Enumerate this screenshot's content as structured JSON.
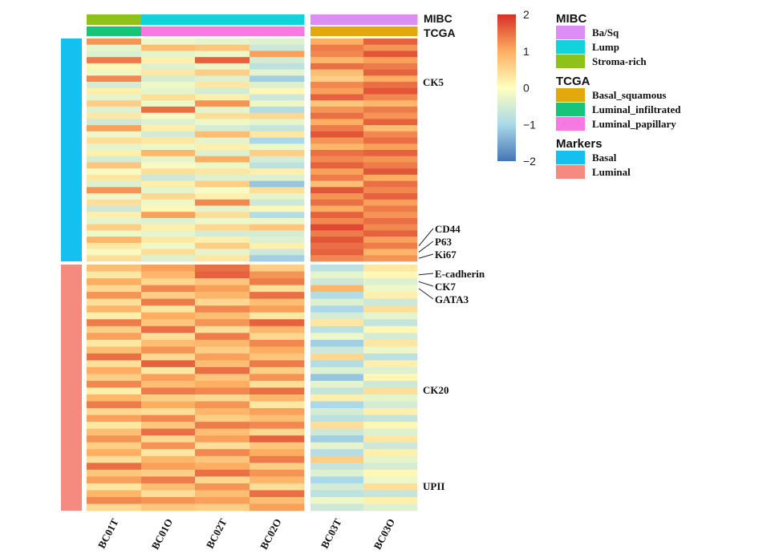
{
  "chart_data": {
    "type": "heatmap",
    "columns": [
      "BC01T",
      "BC01O",
      "BC02T",
      "BC02O",
      "BC03T",
      "BC03O"
    ],
    "column_groups": [
      [
        0,
        1,
        2,
        3
      ],
      [
        4,
        5
      ]
    ],
    "annotations": {
      "MIBC": [
        "Stroma-rich",
        "Lump",
        "Lump",
        "Lump",
        "Ba/Sq",
        "Ba/Sq"
      ],
      "TCGA": [
        "Luminal_infiltrated",
        "Luminal_papillary",
        "Luminal_papillary",
        "Luminal_papillary",
        "Basal_squamous",
        "Basal_squamous"
      ]
    },
    "annotation_titles": [
      "MIBC",
      "TCGA"
    ],
    "row_groups": [
      {
        "name": "Basal",
        "color": "#13c0ef"
      },
      {
        "name": "Luminal",
        "color": "#f58a80"
      }
    ],
    "row_labels": [
      {
        "text": "CK5",
        "group": "Basal",
        "row": 8
      },
      {
        "text": "CD44",
        "group": "Basal",
        "row": 33
      },
      {
        "text": "P63",
        "group": "Basal",
        "row": 34
      },
      {
        "text": "Ki67",
        "group": "Basal",
        "row": 35
      },
      {
        "text": "E-cadherin",
        "group": "Luminal",
        "row": 1
      },
      {
        "text": "CK7",
        "group": "Luminal",
        "row": 2
      },
      {
        "text": "GATA3",
        "group": "Luminal",
        "row": 3
      },
      {
        "text": "CK20",
        "group": "Luminal",
        "row": 18
      },
      {
        "text": "UPII",
        "group": "Luminal",
        "row": 32
      }
    ],
    "basal_values": [
      [
        1.2,
        -0.2,
        -0.3,
        -0.4,
        1.0,
        1.6
      ],
      [
        -0.3,
        0.8,
        0.7,
        -0.6,
        1.4,
        1.2
      ],
      [
        -0.4,
        -0.3,
        -0.2,
        1.1,
        1.3,
        1.7
      ],
      [
        1.4,
        0.2,
        1.6,
        -0.5,
        0.9,
        1.1
      ],
      [
        0.1,
        -0.4,
        -0.2,
        -0.8,
        1.5,
        1.4
      ],
      [
        -0.2,
        0.3,
        0.6,
        -0.3,
        0.8,
        1.6
      ],
      [
        1.3,
        -0.5,
        -0.4,
        -1.1,
        0.6,
        1.0
      ],
      [
        -0.5,
        -0.2,
        0.3,
        -0.4,
        1.3,
        1.5
      ],
      [
        0.2,
        -0.3,
        -0.5,
        0.1,
        1.1,
        1.7
      ],
      [
        -0.3,
        0.4,
        0.2,
        -0.6,
        1.6,
        1.3
      ],
      [
        0.6,
        -0.2,
        1.2,
        -0.2,
        0.7,
        0.9
      ],
      [
        -0.4,
        1.5,
        -0.3,
        -0.9,
        1.2,
        1.4
      ],
      [
        0.3,
        -0.1,
        0.4,
        0.5,
        1.5,
        1.2
      ],
      [
        -0.6,
        -0.4,
        -0.2,
        -0.3,
        1.0,
        1.6
      ],
      [
        1.1,
        0.2,
        -0.5,
        -0.7,
        1.4,
        0.8
      ],
      [
        -0.2,
        -0.5,
        0.8,
        0.3,
        1.7,
        1.3
      ],
      [
        0.4,
        0.3,
        -0.3,
        -1.0,
        1.2,
        1.5
      ],
      [
        -0.3,
        -0.2,
        0.2,
        -0.2,
        0.9,
        1.1
      ],
      [
        0.2,
        0.9,
        -0.4,
        0.6,
        1.5,
        1.6
      ],
      [
        -0.5,
        -0.3,
        1.0,
        -0.5,
        1.3,
        1.2
      ],
      [
        0.7,
        -0.1,
        -0.2,
        -0.8,
        1.6,
        1.4
      ],
      [
        -0.1,
        0.4,
        0.3,
        0.2,
        1.1,
        1.7
      ],
      [
        0.3,
        -0.6,
        -0.4,
        -0.4,
        1.4,
        1.0
      ],
      [
        -0.4,
        0.2,
        0.6,
        -1.2,
        0.8,
        1.5
      ],
      [
        1.2,
        -0.3,
        -0.1,
        0.4,
        1.7,
        1.3
      ],
      [
        -0.2,
        0.5,
        0.2,
        -0.3,
        1.2,
        1.6
      ],
      [
        0.4,
        -0.2,
        1.3,
        -0.6,
        1.5,
        1.1
      ],
      [
        -0.6,
        0.1,
        -0.3,
        0.1,
        1.0,
        1.4
      ],
      [
        0.2,
        1.1,
        0.4,
        -0.9,
        1.6,
        1.2
      ],
      [
        -0.3,
        -0.4,
        -0.2,
        -0.2,
        1.3,
        1.5
      ],
      [
        0.6,
        0.2,
        0.5,
        0.7,
        1.8,
        1.3
      ],
      [
        -0.2,
        -0.3,
        -0.5,
        -0.5,
        1.4,
        1.6
      ],
      [
        0.9,
        0.3,
        0.2,
        -0.4,
        1.7,
        1.1
      ],
      [
        0.3,
        -0.2,
        0.6,
        0.2,
        1.5,
        1.4
      ],
      [
        -0.1,
        0.4,
        -0.3,
        -0.6,
        1.6,
        0.9
      ],
      [
        0.4,
        -0.4,
        0.3,
        -1.1,
        1.3,
        1.2
      ]
    ],
    "luminal_values": [
      [
        0.8,
        1.1,
        1.5,
        0.6,
        -0.8,
        0.3
      ],
      [
        0.3,
        0.9,
        1.6,
        1.2,
        -0.3,
        0.1
      ],
      [
        1.0,
        0.5,
        0.7,
        1.4,
        -0.6,
        -0.4
      ],
      [
        0.5,
        1.3,
        1.1,
        0.4,
        0.9,
        -0.2
      ],
      [
        1.2,
        0.6,
        0.9,
        1.5,
        -0.9,
        0.2
      ],
      [
        0.4,
        1.4,
        0.5,
        0.8,
        -0.4,
        -0.6
      ],
      [
        0.9,
        0.3,
        1.3,
        1.1,
        -1.0,
        0.4
      ],
      [
        0.2,
        1.0,
        0.8,
        0.3,
        -0.5,
        -0.3
      ],
      [
        1.4,
        0.7,
        1.2,
        1.6,
        0.3,
        -0.7
      ],
      [
        0.6,
        1.5,
        0.4,
        0.9,
        -0.8,
        0.1
      ],
      [
        1.1,
        0.4,
        1.4,
        0.5,
        -0.2,
        -0.5
      ],
      [
        0.3,
        0.8,
        0.9,
        1.3,
        -1.1,
        0.3
      ],
      [
        0.8,
        1.2,
        0.6,
        1.0,
        -0.6,
        -0.2
      ],
      [
        1.5,
        0.5,
        1.1,
        0.7,
        0.5,
        -0.8
      ],
      [
        0.4,
        1.6,
        0.8,
        1.4,
        -0.9,
        0.2
      ],
      [
        1.0,
        0.3,
        1.5,
        0.6,
        -0.4,
        -0.4
      ],
      [
        0.6,
        1.1,
        0.7,
        1.2,
        -1.2,
        0.1
      ],
      [
        1.3,
        0.8,
        1.0,
        0.4,
        -0.3,
        -0.6
      ],
      [
        0.2,
        1.4,
        1.3,
        1.5,
        -0.7,
        0.4
      ],
      [
        0.9,
        0.6,
        0.5,
        0.9,
        0.2,
        -0.3
      ],
      [
        1.4,
        1.0,
        1.2,
        0.3,
        -1.0,
        -0.5
      ],
      [
        0.5,
        0.4,
        0.9,
        1.1,
        -0.5,
        0.2
      ],
      [
        1.1,
        1.3,
        0.6,
        0.8,
        -0.8,
        -0.7
      ],
      [
        0.3,
        0.7,
        1.4,
        1.3,
        0.4,
        0.1
      ],
      [
        0.8,
        1.5,
        0.8,
        0.5,
        -0.6,
        -0.4
      ],
      [
        1.2,
        0.5,
        1.1,
        1.6,
        -1.1,
        0.3
      ],
      [
        0.6,
        1.2,
        0.4,
        0.7,
        -0.3,
        -0.6
      ],
      [
        1.0,
        0.3,
        1.3,
        1.0,
        -0.9,
        0.2
      ],
      [
        0.4,
        0.9,
        0.7,
        1.4,
        0.6,
        -0.3
      ],
      [
        1.5,
        1.1,
        1.0,
        0.6,
        -0.7,
        -0.5
      ],
      [
        0.7,
        0.6,
        1.5,
        1.2,
        -0.4,
        0.1
      ],
      [
        1.1,
        1.4,
        0.5,
        0.9,
        -1.0,
        -0.2
      ],
      [
        0.3,
        0.8,
        1.2,
        0.4,
        -0.5,
        0.4
      ],
      [
        0.9,
        0.4,
        0.8,
        1.5,
        -0.8,
        -0.7
      ],
      [
        1.3,
        1.2,
        1.1,
        0.8,
        -0.2,
        0.2
      ],
      [
        0.5,
        0.7,
        0.6,
        1.1,
        -0.6,
        -0.4
      ]
    ],
    "color_scale": {
      "min": -2,
      "max": 2,
      "ticks": [
        2,
        1,
        0,
        -1,
        -2
      ],
      "tick_labels": [
        "2",
        "1",
        "0",
        "−1",
        "−2"
      ],
      "colors": [
        "#4575b4",
        "#abd9e9",
        "#ffffbf",
        "#fdae61",
        "#d73027"
      ]
    },
    "legend": [
      {
        "title": "MIBC",
        "items": [
          {
            "label": "Ba/Sq",
            "color": "#dd8ef5"
          },
          {
            "label": "Lump",
            "color": "#12d3dc"
          },
          {
            "label": "Stroma-rich",
            "color": "#8ec21a"
          }
        ]
      },
      {
        "title": "TCGA",
        "items": [
          {
            "label": "Basal_squamous",
            "color": "#e3a90a"
          },
          {
            "label": "Luminal_infiltrated",
            "color": "#16c47a"
          },
          {
            "label": "Luminal_papillary",
            "color": "#f77ae3"
          }
        ]
      },
      {
        "title": "Markers",
        "items": [
          {
            "label": "Basal",
            "color": "#13c0ef"
          },
          {
            "label": "Luminal",
            "color": "#f58a80"
          }
        ]
      }
    ],
    "legend_placement": "right"
  }
}
